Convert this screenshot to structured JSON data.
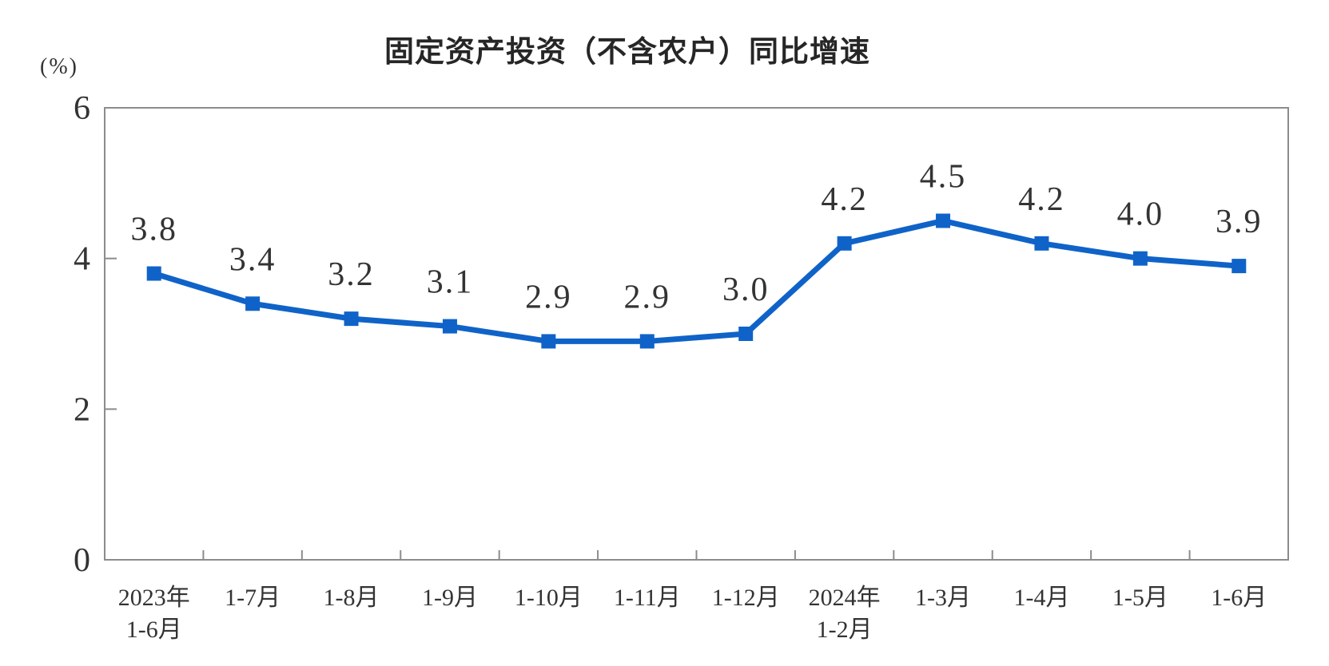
{
  "chart_data": {
    "type": "line",
    "title": "固定资产投资（不含农户）同比增速",
    "unit": "(%)",
    "categories": [
      [
        "2023年",
        "1-6月"
      ],
      [
        "1-7月"
      ],
      [
        "1-8月"
      ],
      [
        "1-9月"
      ],
      [
        "1-10月"
      ],
      [
        "1-11月"
      ],
      [
        "1-12月"
      ],
      [
        "2024年",
        "1-2月"
      ],
      [
        "1-3月"
      ],
      [
        "1-4月"
      ],
      [
        "1-5月"
      ],
      [
        "1-6月"
      ]
    ],
    "values": [
      3.8,
      3.4,
      3.2,
      3.1,
      2.9,
      2.9,
      3.0,
      4.2,
      4.5,
      4.2,
      4.0,
      3.9
    ],
    "data_labels": [
      "3.8",
      "3.4",
      "3.2",
      "3.1",
      "2.9",
      "2.9",
      "3.0",
      "4.2",
      "4.5",
      "4.2",
      "4.0",
      "3.9"
    ],
    "xlabel": "",
    "ylabel": "(%)",
    "ylim": [
      0,
      6
    ],
    "y_ticks": [
      0,
      2,
      4,
      6
    ],
    "grid": "off",
    "legend": "none",
    "marker": "square",
    "line_color": "#0F63C8",
    "axis_color": "#8C8C8C",
    "text_color": "#333333"
  }
}
